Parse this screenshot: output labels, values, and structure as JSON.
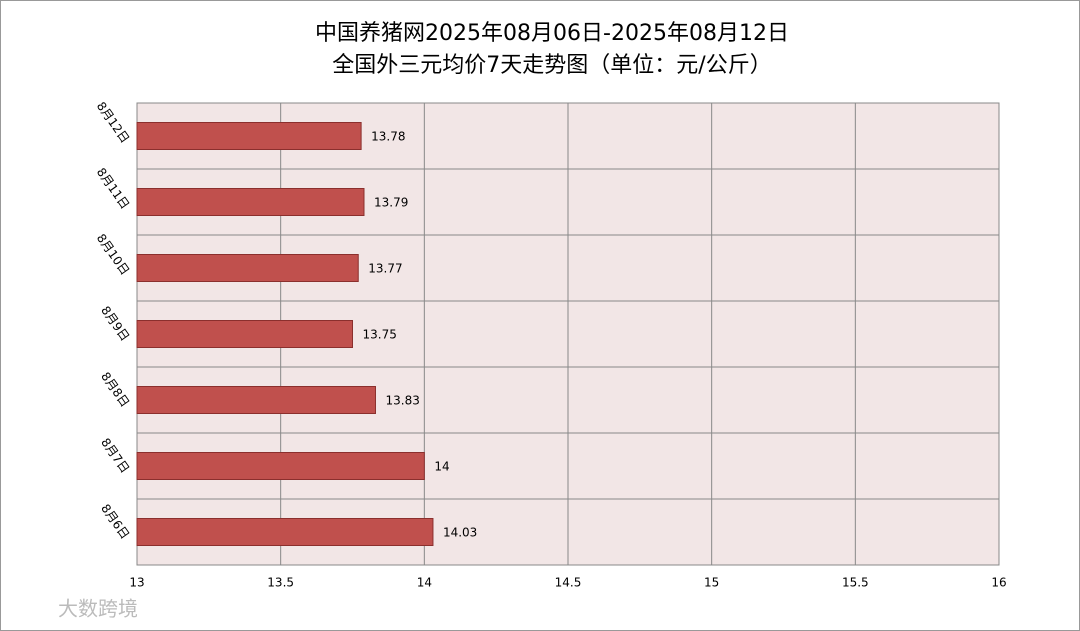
{
  "chart_data": {
    "type": "bar",
    "orientation": "horizontal",
    "title": "中国养猪网2025年08月06日-2025年08月12日",
    "subtitle": "全国外三元均价7天走势图（单位：元/公斤）",
    "categories": [
      "8月12日",
      "8月11日",
      "8月10日",
      "8月9日",
      "8月8日",
      "8月7日",
      "8月6日"
    ],
    "values": [
      13.78,
      13.79,
      13.77,
      13.75,
      13.83,
      14,
      14.03
    ],
    "color": "#c0504d",
    "xlim": [
      13,
      16
    ],
    "xticks": [
      13,
      13.5,
      14,
      14.5,
      15,
      15.5,
      16
    ],
    "grid": true,
    "watermark": "大数跨境"
  }
}
